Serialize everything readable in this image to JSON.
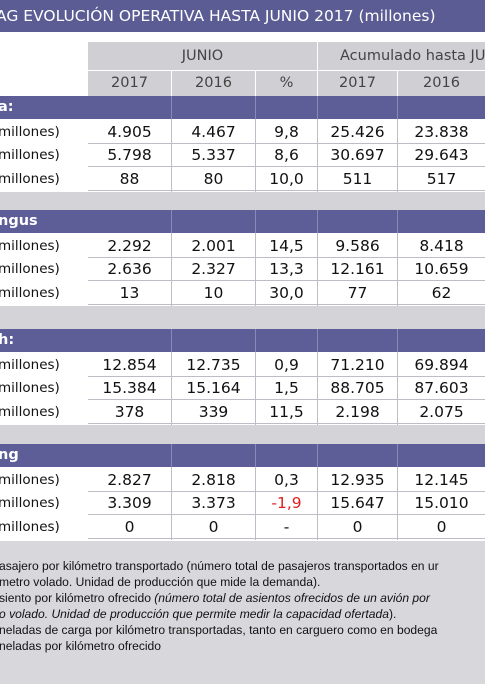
{
  "title": "AG EVOLUCIÓN OPERATIVA HASTA JUNIO 2017 (millones)",
  "header": {
    "group_junio": "JUNIO",
    "group_acum": "Acumulado hasta JU",
    "col_2017": "2017",
    "col_2016": "2016",
    "col_pct": "%",
    "acum_2017": "2017",
    "acum_2016": "2016"
  },
  "sections": [
    {
      "name": "a:",
      "rows": [
        {
          "label": "millones)",
          "v2017": "4.905",
          "v2016": "4.467",
          "pct": "9,8",
          "a2017": "25.426",
          "a2016": "23.838"
        },
        {
          "label": "millones)",
          "v2017": "5.798",
          "v2016": "5.337",
          "pct": "8,6",
          "a2017": "30.697",
          "a2016": "29.643"
        },
        {
          "label": "millones)",
          "v2017": "88",
          "v2016": "80",
          "pct": "10,0",
          "a2017": "511",
          "a2016": "517"
        }
      ]
    },
    {
      "name": "ngus",
      "rows": [
        {
          "label": "millones)",
          "v2017": "2.292",
          "v2016": "2.001",
          "pct": "14,5",
          "a2017": "9.586",
          "a2016": "8.418"
        },
        {
          "label": "millones)",
          "v2017": "2.636",
          "v2016": "2.327",
          "pct": "13,3",
          "a2017": "12.161",
          "a2016": "10.659"
        },
        {
          "label": "millones)",
          "v2017": "13",
          "v2016": "10",
          "pct": "30,0",
          "a2017": "77",
          "a2016": "62"
        }
      ]
    },
    {
      "name": "h:",
      "rows": [
        {
          "label": "millones)",
          "v2017": "12.854",
          "v2016": "12.735",
          "pct": "0,9",
          "a2017": "71.210",
          "a2016": "69.894"
        },
        {
          "label": "millones)",
          "v2017": "15.384",
          "v2016": "15.164",
          "pct": "1,5",
          "a2017": "88.705",
          "a2016": "87.603"
        },
        {
          "label": "millones)",
          "v2017": "378",
          "v2016": "339",
          "pct": "11,5",
          "a2017": "2.198",
          "a2016": "2.075"
        }
      ]
    },
    {
      "name": "ng",
      "rows": [
        {
          "label": "millones)",
          "v2017": "2.827",
          "v2016": "2.818",
          "pct": "0,3",
          "a2017": "12.935",
          "a2016": "12.145"
        },
        {
          "label": "millones)",
          "v2017": "3.309",
          "v2016": "3.373",
          "pct": "-1,9",
          "a2017": "15.647",
          "a2016": "15.010"
        },
        {
          "label": "millones)",
          "v2017": "0",
          "v2016": "0",
          "pct": "-",
          "a2017": "0",
          "a2016": "0"
        }
      ]
    }
  ],
  "footer": {
    "line1": "asajero por kilómetro transportado (número total de pasajeros transportados en ur",
    "line2": "metro volado. Unidad de producción que mide la demanda).",
    "line3a": "siento por kilómetro ofrecido ",
    "line3b": "(número total de asientos ofrecidos de un avión por",
    "line4": "o volado. Unidad de producción que permite medir la capacidad ofertada",
    "line4end": ").",
    "line5": "neladas de carga por kilómetro transportadas, tanto en carguero como en bodega",
    "line6": "neladas por kilómetro ofrecido"
  },
  "colors": {
    "header_bar": "#5b5c94",
    "negative": "#e02020",
    "grey": "#cfcfd4"
  }
}
